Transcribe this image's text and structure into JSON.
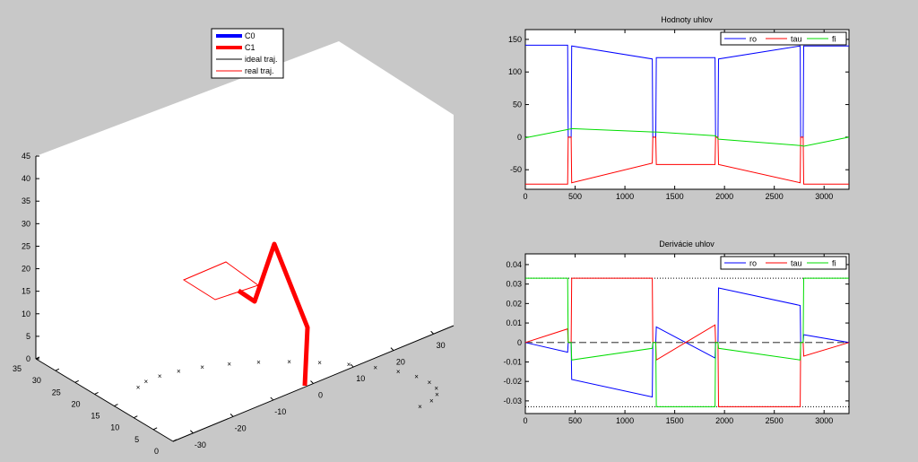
{
  "chart_data": [
    {
      "type": "line3d",
      "legend_position": "top-center",
      "legend": [
        {
          "label": "C0",
          "color": "#0000ff",
          "style": "thick"
        },
        {
          "label": "C1",
          "color": "#ff0000",
          "style": "thick"
        },
        {
          "label": "ideal traj.",
          "color": "#000000",
          "style": "thin"
        },
        {
          "label": "real traj.",
          "color": "#ff0000",
          "style": "thin"
        }
      ],
      "z_ticks": [
        "0",
        "5",
        "10",
        "15",
        "20",
        "25",
        "30",
        "35",
        "40",
        "45"
      ],
      "y_ticks": [
        "0",
        "5",
        "10",
        "15",
        "20",
        "25",
        "30",
        "35"
      ],
      "x_ticks": [
        "-30",
        "-20",
        "-10",
        "0",
        "10",
        "20",
        "30"
      ],
      "xlim": [
        -35,
        35
      ],
      "ylim": [
        0,
        35
      ],
      "zlim": [
        0,
        45
      ]
    },
    {
      "type": "line",
      "title": "Hodnoty uhlov",
      "xlim": [
        0,
        3250
      ],
      "ylim": [
        -80,
        165
      ],
      "x_ticks": [
        "0",
        "500",
        "1000",
        "1500",
        "2000",
        "2500",
        "3000"
      ],
      "y_ticks": [
        "-50",
        "0",
        "50",
        "100",
        "150"
      ],
      "legend_position": "top-right",
      "series": [
        {
          "name": "ro",
          "color": "#0000ff",
          "points": [
            [
              0,
              141
            ],
            [
              425,
              141
            ],
            [
              430,
              0
            ],
            [
              460,
              0
            ],
            [
              465,
              140
            ],
            [
              1275,
              120
            ],
            [
              1280,
              0
            ],
            [
              1310,
              0
            ],
            [
              1315,
              122
            ],
            [
              1905,
              122
            ],
            [
              1910,
              0
            ],
            [
              1935,
              0
            ],
            [
              1940,
              120
            ],
            [
              2760,
              140
            ],
            [
              2765,
              0
            ],
            [
              2790,
              0
            ],
            [
              2795,
              140
            ],
            [
              3250,
              140
            ]
          ]
        },
        {
          "name": "tau",
          "color": "#ff0000",
          "points": [
            [
              0,
              -72
            ],
            [
              425,
              -72
            ],
            [
              430,
              0
            ],
            [
              460,
              0
            ],
            [
              465,
              -70
            ],
            [
              1275,
              -40
            ],
            [
              1280,
              0
            ],
            [
              1310,
              0
            ],
            [
              1315,
              -42
            ],
            [
              1905,
              -42
            ],
            [
              1910,
              0
            ],
            [
              1935,
              0
            ],
            [
              1940,
              -42
            ],
            [
              2760,
              -70
            ],
            [
              2765,
              0
            ],
            [
              2790,
              0
            ],
            [
              2795,
              -72
            ],
            [
              3250,
              -72
            ]
          ]
        },
        {
          "name": "fi",
          "color": "#00dd00",
          "points": [
            [
              0,
              -1
            ],
            [
              430,
              12
            ],
            [
              465,
              13
            ],
            [
              1280,
              8
            ],
            [
              1315,
              8
            ],
            [
              1910,
              2
            ],
            [
              1940,
              -3
            ],
            [
              2765,
              -13
            ],
            [
              2795,
              -14
            ],
            [
              3250,
              0
            ]
          ]
        }
      ]
    },
    {
      "type": "line",
      "title": "Derivácie uhlov",
      "xlim": [
        0,
        3250
      ],
      "ylim": [
        -0.0365,
        0.0455
      ],
      "x_ticks": [
        "0",
        "500",
        "1000",
        "1500",
        "2000",
        "2500",
        "3000"
      ],
      "y_ticks": [
        "-0.03",
        "-0.02",
        "-0.01",
        "0",
        "0.01",
        "0.02",
        "0.03",
        "0.04"
      ],
      "limits": [
        0.033,
        -0.033
      ],
      "legend_position": "top-right",
      "series": [
        {
          "name": "ro",
          "color": "#0000ff",
          "points": [
            [
              0,
              0
            ],
            [
              425,
              -0.005
            ],
            [
              430,
              0
            ],
            [
              460,
              0
            ],
            [
              465,
              -0.019
            ],
            [
              1275,
              -0.028
            ],
            [
              1280,
              0
            ],
            [
              1310,
              0
            ],
            [
              1315,
              0.008
            ],
            [
              1905,
              -0.008
            ],
            [
              1910,
              0
            ],
            [
              1935,
              0
            ],
            [
              1940,
              0.028
            ],
            [
              2760,
              0.019
            ],
            [
              2765,
              0
            ],
            [
              2790,
              0
            ],
            [
              2795,
              0.004
            ],
            [
              3250,
              0
            ]
          ]
        },
        {
          "name": "tau",
          "color": "#ff0000",
          "points": [
            [
              0,
              0
            ],
            [
              425,
              0.007
            ],
            [
              430,
              0
            ],
            [
              460,
              0
            ],
            [
              465,
              0.033
            ],
            [
              1275,
              0.033
            ],
            [
              1280,
              0
            ],
            [
              1310,
              0
            ],
            [
              1315,
              -0.009
            ],
            [
              1905,
              0.009
            ],
            [
              1910,
              0
            ],
            [
              1935,
              0
            ],
            [
              1940,
              -0.033
            ],
            [
              2760,
              -0.033
            ],
            [
              2765,
              0
            ],
            [
              2790,
              0
            ],
            [
              2795,
              -0.007
            ],
            [
              3250,
              0
            ]
          ]
        },
        {
          "name": "fi",
          "color": "#00dd00",
          "points": [
            [
              0,
              0.033
            ],
            [
              425,
              0.033
            ],
            [
              430,
              0
            ],
            [
              460,
              0
            ],
            [
              465,
              -0.009
            ],
            [
              1275,
              -0.003
            ],
            [
              1280,
              0
            ],
            [
              1310,
              0
            ],
            [
              1315,
              -0.033
            ],
            [
              1905,
              -0.033
            ],
            [
              1910,
              0
            ],
            [
              1935,
              0
            ],
            [
              1940,
              -0.003
            ],
            [
              2760,
              -0.009
            ],
            [
              2765,
              0
            ],
            [
              2790,
              0
            ],
            [
              2795,
              0.033
            ],
            [
              3250,
              0.033
            ]
          ]
        }
      ]
    }
  ]
}
